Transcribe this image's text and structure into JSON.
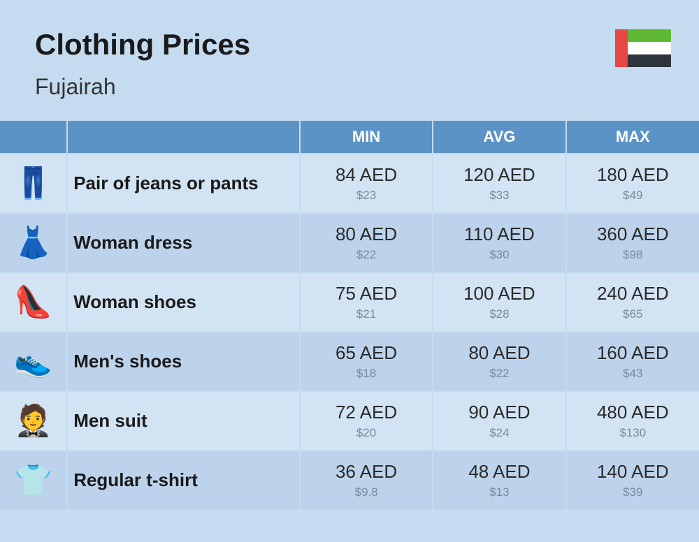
{
  "header": {
    "title": "Clothing Prices",
    "subtitle": "Fujairah"
  },
  "flag": {
    "left_color": "#e84545",
    "stripes": [
      "#5eb833",
      "#ffffff",
      "#2d343a"
    ]
  },
  "columns": {
    "min": "MIN",
    "avg": "AVG",
    "max": "MAX"
  },
  "colors": {
    "page_bg": "#c5dcf0",
    "header_bg": "#5b93c7",
    "header_text": "#ffffff",
    "row_even_bg": "#d2e3f3",
    "row_odd_bg": "#bcd3eb",
    "text_main": "#2a2a2a",
    "text_sub": "#7a8a9a",
    "border": "#c5dcf0"
  },
  "typography": {
    "title_size": 42,
    "title_weight": 800,
    "subtitle_size": 32,
    "header_size": 22,
    "name_size": 26,
    "price_size": 26,
    "sub_size": 17
  },
  "rows": [
    {
      "icon": "👖",
      "name": "Pair of jeans or pants",
      "min_aed": "84 AED",
      "min_usd": "$23",
      "avg_aed": "120 AED",
      "avg_usd": "$33",
      "max_aed": "180 AED",
      "max_usd": "$49"
    },
    {
      "icon": "👗",
      "name": "Woman dress",
      "min_aed": "80 AED",
      "min_usd": "$22",
      "avg_aed": "110 AED",
      "avg_usd": "$30",
      "max_aed": "360 AED",
      "max_usd": "$98"
    },
    {
      "icon": "👠",
      "name": "Woman shoes",
      "min_aed": "75 AED",
      "min_usd": "$21",
      "avg_aed": "100 AED",
      "avg_usd": "$28",
      "max_aed": "240 AED",
      "max_usd": "$65"
    },
    {
      "icon": "👟",
      "name": "Men's shoes",
      "min_aed": "65 AED",
      "min_usd": "$18",
      "avg_aed": "80 AED",
      "avg_usd": "$22",
      "max_aed": "160 AED",
      "max_usd": "$43"
    },
    {
      "icon": "🤵",
      "name": "Men suit",
      "min_aed": "72 AED",
      "min_usd": "$20",
      "avg_aed": "90 AED",
      "avg_usd": "$24",
      "max_aed": "480 AED",
      "max_usd": "$130"
    },
    {
      "icon": "👕",
      "name": "Regular t-shirt",
      "min_aed": "36 AED",
      "min_usd": "$9.8",
      "avg_aed": "48 AED",
      "avg_usd": "$13",
      "max_aed": "140 AED",
      "max_usd": "$39"
    }
  ]
}
